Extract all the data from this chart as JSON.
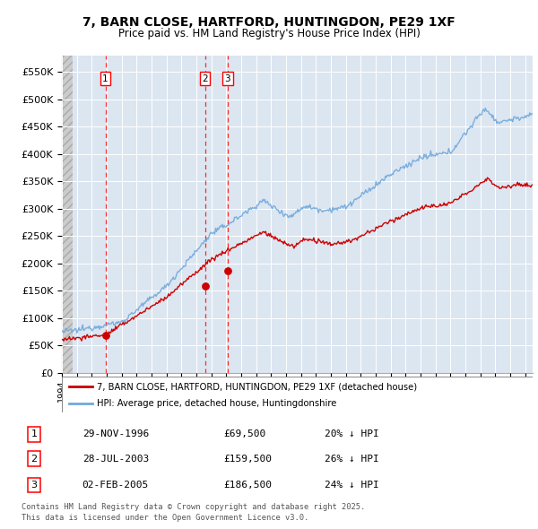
{
  "title_line1": "7, BARN CLOSE, HARTFORD, HUNTINGDON, PE29 1XF",
  "title_line2": "Price paid vs. HM Land Registry's House Price Index (HPI)",
  "ylim": [
    0,
    580000
  ],
  "yticks": [
    0,
    50000,
    100000,
    150000,
    200000,
    250000,
    300000,
    350000,
    400000,
    450000,
    500000,
    550000
  ],
  "ytick_labels": [
    "£0",
    "£50K",
    "£100K",
    "£150K",
    "£200K",
    "£250K",
    "£300K",
    "£350K",
    "£400K",
    "£450K",
    "£500K",
    "£550K"
  ],
  "hpi_color": "#6fa8dc",
  "price_color": "#cc0000",
  "plot_bg_color": "#dce6f1",
  "grid_color": "#ffffff",
  "legend_label_price": "7, BARN CLOSE, HARTFORD, HUNTINGDON, PE29 1XF (detached house)",
  "legend_label_hpi": "HPI: Average price, detached house, Huntingdonshire",
  "transactions": [
    {
      "num": 1,
      "date": "29-NOV-1996",
      "price": 69500,
      "pct": "20%",
      "x_year": 1996.91
    },
    {
      "num": 2,
      "date": "28-JUL-2003",
      "price": 159500,
      "pct": "26%",
      "x_year": 2003.57
    },
    {
      "num": 3,
      "date": "02-FEB-2005",
      "price": 186500,
      "pct": "24%",
      "x_year": 2005.09
    }
  ],
  "footer_line1": "Contains HM Land Registry data © Crown copyright and database right 2025.",
  "footer_line2": "This data is licensed under the Open Government Licence v3.0.",
  "xmin": 1994,
  "xmax": 2025.5
}
